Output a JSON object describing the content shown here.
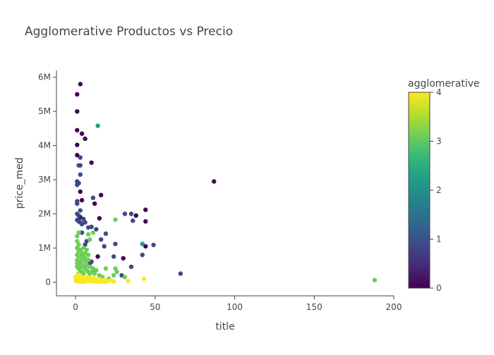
{
  "chart_data": {
    "type": "scatter",
    "title": "Agglomerative Productos vs Precio",
    "xlabel": "title",
    "ylabel": "price_med",
    "xlim": [
      -12,
      200
    ],
    "ylim": [
      -400000,
      6200000
    ],
    "x_ticks": [
      0,
      50,
      100,
      150,
      200
    ],
    "x_tick_labels": [
      "0",
      "50",
      "100",
      "150",
      "200"
    ],
    "y_ticks": [
      0,
      1000000,
      2000000,
      3000000,
      4000000,
      5000000,
      6000000
    ],
    "y_tick_labels": [
      "0",
      "1M",
      "2M",
      "3M",
      "4M",
      "5M",
      "6M"
    ],
    "grid": false,
    "colorbar": {
      "title": "agglomerative",
      "range": [
        0,
        4
      ],
      "ticks": [
        0,
        1,
        2,
        3,
        4
      ],
      "tick_labels": [
        "0",
        "1",
        "2",
        "3",
        "4"
      ],
      "colorscale": [
        "#440154",
        "#482878",
        "#3e4989",
        "#31688e",
        "#26828e",
        "#1f9e89",
        "#35b779",
        "#6ece58",
        "#b5de2b",
        "#fde725"
      ]
    },
    "series": [
      {
        "cluster": 0,
        "points": [
          {
            "x": 3,
            "y": 5800000
          },
          {
            "x": 1,
            "y": 5500000
          },
          {
            "x": 1,
            "y": 5000000
          },
          {
            "x": 1,
            "y": 4450000
          },
          {
            "x": 4,
            "y": 4350000
          },
          {
            "x": 6,
            "y": 4200000
          },
          {
            "x": 1,
            "y": 4020000
          },
          {
            "x": 1,
            "y": 3720000
          },
          {
            "x": 10,
            "y": 3500000
          },
          {
            "x": 3,
            "y": 2650000
          },
          {
            "x": 16,
            "y": 2550000
          },
          {
            "x": 4,
            "y": 2400000
          },
          {
            "x": 12,
            "y": 2300000
          },
          {
            "x": 44,
            "y": 2120000
          },
          {
            "x": 38,
            "y": 1950000
          },
          {
            "x": 44,
            "y": 1780000
          },
          {
            "x": 87,
            "y": 2950000
          },
          {
            "x": 15,
            "y": 1870000
          },
          {
            "x": 30,
            "y": 700000
          },
          {
            "x": 14,
            "y": 750000
          },
          {
            "x": 44,
            "y": 1050000
          },
          {
            "x": 3,
            "y": 1900000
          }
        ]
      },
      {
        "cluster": 1,
        "points": [
          {
            "x": 3,
            "y": 3650000
          },
          {
            "x": 2,
            "y": 3420000
          },
          {
            "x": 3,
            "y": 3420000
          },
          {
            "x": 3,
            "y": 3150000
          },
          {
            "x": 1,
            "y": 2950000
          },
          {
            "x": 1,
            "y": 2850000
          },
          {
            "x": 2,
            "y": 2900000
          },
          {
            "x": 1,
            "y": 2370000
          },
          {
            "x": 1,
            "y": 2300000
          },
          {
            "x": 3,
            "y": 2100000
          },
          {
            "x": 1,
            "y": 2000000
          },
          {
            "x": 2,
            "y": 1950000
          },
          {
            "x": 1,
            "y": 1820000
          },
          {
            "x": 2,
            "y": 1780000
          },
          {
            "x": 3,
            "y": 1750000
          },
          {
            "x": 4,
            "y": 1700000
          },
          {
            "x": 5,
            "y": 1850000
          },
          {
            "x": 6,
            "y": 1750000
          },
          {
            "x": 11,
            "y": 2470000
          },
          {
            "x": 10,
            "y": 1620000
          },
          {
            "x": 13,
            "y": 1550000
          },
          {
            "x": 8,
            "y": 1600000
          },
          {
            "x": 16,
            "y": 1250000
          },
          {
            "x": 19,
            "y": 1420000
          },
          {
            "x": 31,
            "y": 2000000
          },
          {
            "x": 35,
            "y": 2000000
          },
          {
            "x": 36,
            "y": 1800000
          },
          {
            "x": 25,
            "y": 1120000
          },
          {
            "x": 18,
            "y": 1050000
          },
          {
            "x": 49,
            "y": 1090000
          },
          {
            "x": 42,
            "y": 800000
          },
          {
            "x": 24,
            "y": 750000
          },
          {
            "x": 35,
            "y": 450000
          },
          {
            "x": 29,
            "y": 200000
          },
          {
            "x": 66,
            "y": 250000
          },
          {
            "x": 9,
            "y": 550000
          },
          {
            "x": 11,
            "y": 300000
          },
          {
            "x": 12,
            "y": 350000
          },
          {
            "x": 7,
            "y": 1200000
          },
          {
            "x": 6,
            "y": 1100000
          },
          {
            "x": 4,
            "y": 1450000
          },
          {
            "x": 10,
            "y": 600000
          }
        ]
      },
      {
        "cluster": 2,
        "points": [
          {
            "x": 14,
            "y": 4580000
          },
          {
            "x": 42,
            "y": 1120000
          }
        ]
      },
      {
        "cluster": 3,
        "points": [
          {
            "x": 188,
            "y": 60000
          },
          {
            "x": 25,
            "y": 1830000
          },
          {
            "x": 21,
            "y": 100000
          },
          {
            "x": 19,
            "y": 400000
          },
          {
            "x": 25,
            "y": 400000
          },
          {
            "x": 26,
            "y": 300000
          },
          {
            "x": 31,
            "y": 150000
          },
          {
            "x": 11,
            "y": 1450000
          },
          {
            "x": 8,
            "y": 1400000
          },
          {
            "x": 9,
            "y": 1250000
          },
          {
            "x": 7,
            "y": 950000
          },
          {
            "x": 8,
            "y": 800000
          },
          {
            "x": 6,
            "y": 700000
          },
          {
            "x": 1,
            "y": 1200000
          },
          {
            "x": 2,
            "y": 1100000
          },
          {
            "x": 1,
            "y": 1000000
          },
          {
            "x": 2,
            "y": 900000
          },
          {
            "x": 1,
            "y": 800000
          },
          {
            "x": 3,
            "y": 750000
          },
          {
            "x": 1,
            "y": 650000
          },
          {
            "x": 2,
            "y": 600000
          },
          {
            "x": 3,
            "y": 550000
          },
          {
            "x": 4,
            "y": 500000
          },
          {
            "x": 5,
            "y": 450000
          },
          {
            "x": 1,
            "y": 450000
          },
          {
            "x": 2,
            "y": 400000
          },
          {
            "x": 3,
            "y": 350000
          },
          {
            "x": 6,
            "y": 400000
          },
          {
            "x": 7,
            "y": 350000
          },
          {
            "x": 8,
            "y": 300000
          },
          {
            "x": 9,
            "y": 250000
          },
          {
            "x": 10,
            "y": 300000
          },
          {
            "x": 12,
            "y": 250000
          },
          {
            "x": 4,
            "y": 650000
          },
          {
            "x": 5,
            "y": 750000
          },
          {
            "x": 6,
            "y": 600000
          },
          {
            "x": 2,
            "y": 250000
          },
          {
            "x": 4,
            "y": 300000
          },
          {
            "x": 5,
            "y": 250000
          },
          {
            "x": 11,
            "y": 400000
          },
          {
            "x": 15,
            "y": 200000
          },
          {
            "x": 17,
            "y": 150000
          },
          {
            "x": 3,
            "y": 950000
          },
          {
            "x": 4,
            "y": 850000
          },
          {
            "x": 7,
            "y": 500000
          },
          {
            "x": 1,
            "y": 1350000
          },
          {
            "x": 2,
            "y": 1450000
          },
          {
            "x": 8,
            "y": 650000
          },
          {
            "x": 9,
            "y": 450000
          },
          {
            "x": 13,
            "y": 350000
          },
          {
            "x": 24,
            "y": 200000
          },
          {
            "x": 5,
            "y": 1000000
          },
          {
            "x": 6,
            "y": 850000
          },
          {
            "x": 1,
            "y": 550000
          },
          {
            "x": 2,
            "y": 750000
          },
          {
            "x": 3,
            "y": 450000
          }
        ]
      },
      {
        "cluster": 4,
        "points": [
          {
            "x": 0,
            "y": 50000
          },
          {
            "x": 1,
            "y": 100000
          },
          {
            "x": 2,
            "y": 50000
          },
          {
            "x": 3,
            "y": 80000
          },
          {
            "x": 4,
            "y": 30000
          },
          {
            "x": 5,
            "y": 60000
          },
          {
            "x": 6,
            "y": 20000
          },
          {
            "x": 7,
            "y": 90000
          },
          {
            "x": 8,
            "y": 40000
          },
          {
            "x": 9,
            "y": 70000
          },
          {
            "x": 10,
            "y": 30000
          },
          {
            "x": 11,
            "y": 60000
          },
          {
            "x": 12,
            "y": 20000
          },
          {
            "x": 13,
            "y": 50000
          },
          {
            "x": 14,
            "y": 80000
          },
          {
            "x": 15,
            "y": 30000
          },
          {
            "x": 16,
            "y": 60000
          },
          {
            "x": 17,
            "y": 20000
          },
          {
            "x": 18,
            "y": 40000
          },
          {
            "x": 19,
            "y": 10000
          },
          {
            "x": 1,
            "y": 200000
          },
          {
            "x": 2,
            "y": 180000
          },
          {
            "x": 3,
            "y": 150000
          },
          {
            "x": 4,
            "y": 120000
          },
          {
            "x": 5,
            "y": 140000
          },
          {
            "x": 1,
            "y": 160000
          },
          {
            "x": 2,
            "y": 130000
          },
          {
            "x": 6,
            "y": 110000
          },
          {
            "x": 7,
            "y": 150000
          },
          {
            "x": 8,
            "y": 120000
          },
          {
            "x": 10,
            "y": 100000
          },
          {
            "x": 12,
            "y": 90000
          },
          {
            "x": 14,
            "y": 20000
          },
          {
            "x": 20,
            "y": 30000
          },
          {
            "x": 22,
            "y": 50000
          },
          {
            "x": 24,
            "y": 20000
          },
          {
            "x": 33,
            "y": 30000
          },
          {
            "x": 43,
            "y": 100000
          },
          {
            "x": 1,
            "y": 20000
          },
          {
            "x": 3,
            "y": 10000
          },
          {
            "x": 5,
            "y": 15000
          },
          {
            "x": 9,
            "y": 130000
          },
          {
            "x": 11,
            "y": 120000
          },
          {
            "x": 0,
            "y": 150000
          },
          {
            "x": 2,
            "y": 220000
          },
          {
            "x": 13,
            "y": 70000
          },
          {
            "x": 16,
            "y": 10000
          },
          {
            "x": 18,
            "y": 70000
          }
        ]
      }
    ]
  }
}
